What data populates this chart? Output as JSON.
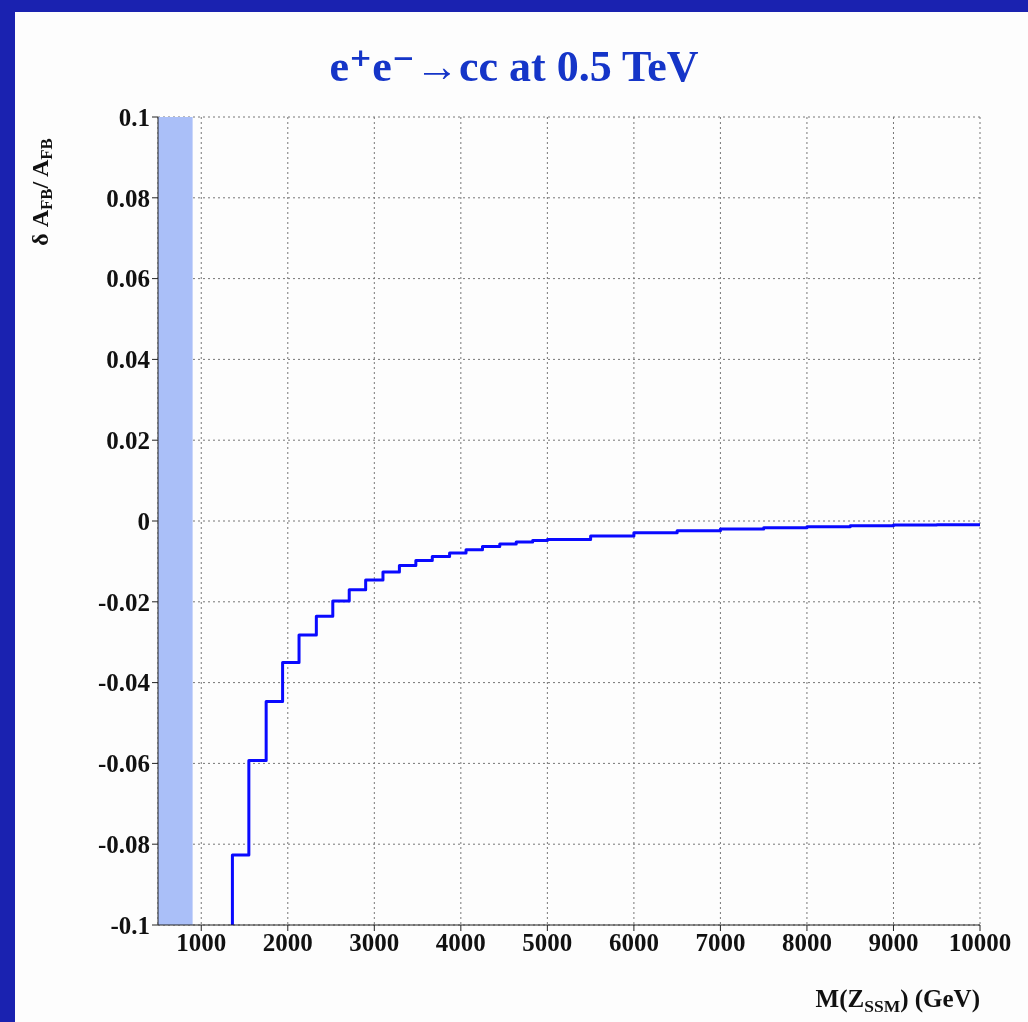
{
  "chart_data": {
    "type": "step",
    "title": "e⁺e⁻→cc  at 0.5 TeV",
    "xlabel": "M(Z$_{SSM}$) (GeV)",
    "ylabel": "δ A$_{FB}$/ A$_{FB}$",
    "x": [
      1360,
      1360,
      1550,
      1750,
      1940,
      2130,
      2330,
      2520,
      2710,
      2900,
      3100,
      3290,
      3480,
      3670,
      3870,
      4060,
      4250,
      4450,
      4640,
      4830,
      5000,
      5500,
      6000,
      6500,
      7000,
      7500,
      8000,
      8500,
      9000,
      9500,
      10000
    ],
    "series": [
      {
        "color": "#0a0aff",
        "values": [
          -0.1,
          -0.0827,
          -0.0593,
          -0.0447,
          -0.035,
          -0.0282,
          -0.0236,
          -0.0198,
          -0.017,
          -0.0146,
          -0.0126,
          -0.011,
          -0.0098,
          -0.0088,
          -0.0079,
          -0.0071,
          -0.0063,
          -0.0057,
          -0.0052,
          -0.0048,
          -0.0046,
          -0.0037,
          -0.0029,
          -0.0024,
          -0.002,
          -0.0017,
          -0.0014,
          -0.0012,
          -0.001,
          -0.0009,
          -0.0008
        ]
      }
    ],
    "xlim": [
      500,
      10000
    ],
    "xticks": [
      1000,
      2000,
      3000,
      4000,
      5000,
      6000,
      7000,
      8000,
      9000,
      10000
    ],
    "ylim": [
      -0.1,
      0.1
    ],
    "yticks": [
      -0.1,
      -0.08,
      -0.06,
      -0.04,
      -0.02,
      0,
      0.02,
      0.04,
      0.06,
      0.08,
      0.1
    ],
    "bands": [
      {
        "axis": "x",
        "from": 500,
        "to": 900,
        "color": "#aabff8"
      }
    ],
    "grid": true,
    "marker": "none",
    "line_style": "solid"
  }
}
